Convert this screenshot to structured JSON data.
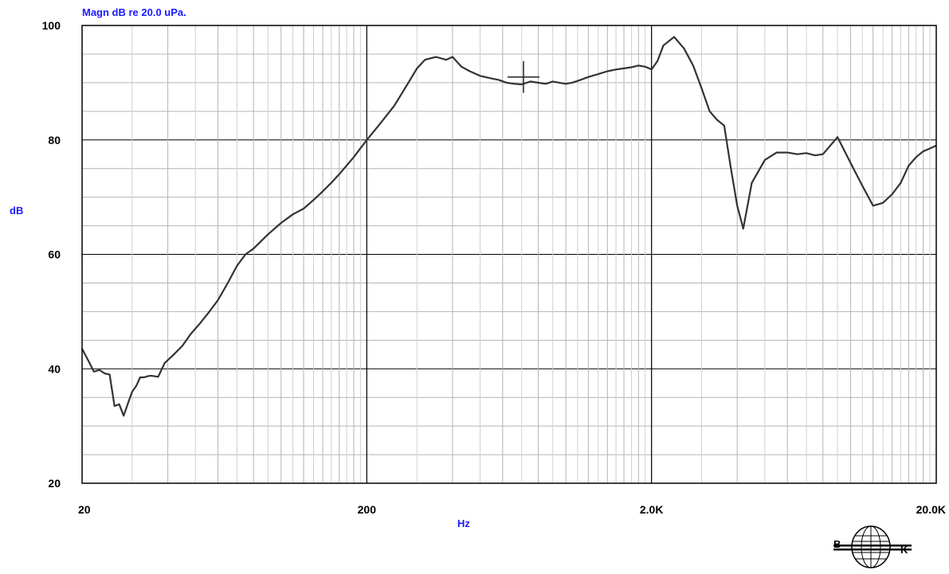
{
  "chart_data": {
    "type": "line",
    "title": "Magn dB re 20.0 uPa.",
    "xlabel": "Hz",
    "ylabel": "dB",
    "xscale": "log",
    "xlim": [
      20,
      20000
    ],
    "ylim": [
      20,
      100
    ],
    "grid": true,
    "yticks": [
      {
        "value": 20,
        "label": "20"
      },
      {
        "value": 40,
        "label": "40"
      },
      {
        "value": 60,
        "label": "60"
      },
      {
        "value": 80,
        "label": "80"
      },
      {
        "value": 100,
        "label": "100"
      }
    ],
    "xticks": [
      {
        "value": 20,
        "label": "20"
      },
      {
        "value": 200,
        "label": "200"
      },
      {
        "value": 2000,
        "label": "2.0K"
      },
      {
        "value": 20000,
        "label": "20.0K"
      }
    ],
    "cursor": {
      "x": 710,
      "y": 91
    },
    "series": [
      {
        "name": "",
        "color": "#000000",
        "x": [
          20,
          21,
          22,
          23,
          24,
          25,
          26,
          27,
          28,
          29,
          30,
          31,
          32,
          33,
          34,
          35,
          37,
          39,
          42,
          45,
          48,
          52,
          56,
          60,
          65,
          70,
          75,
          80,
          90,
          100,
          110,
          120,
          130,
          140,
          150,
          160,
          180,
          200,
          220,
          250,
          280,
          300,
          320,
          350,
          380,
          400,
          430,
          460,
          500,
          540,
          580,
          620,
          660,
          700,
          750,
          800,
          850,
          900,
          950,
          1000,
          1050,
          1100,
          1200,
          1300,
          1400,
          1500,
          1600,
          1700,
          1800,
          1900,
          2000,
          2100,
          2200,
          2400,
          2600,
          2800,
          3000,
          3200,
          3400,
          3600,
          3800,
          4000,
          4200,
          4500,
          5000,
          5500,
          6000,
          6500,
          7000,
          7500,
          8000,
          9000,
          10000,
          11000,
          12000,
          13000,
          14000,
          15000,
          16000,
          17000,
          18000,
          19000,
          20000
        ],
        "y": [
          43.5,
          41.5,
          39.5,
          39.8,
          39.2,
          39.0,
          33.5,
          33.8,
          31.8,
          34.0,
          36.0,
          37.0,
          38.5,
          38.5,
          38.7,
          38.8,
          38.6,
          41.0,
          42.5,
          44.0,
          46.0,
          48.0,
          50.0,
          52.0,
          55.0,
          58.0,
          60.0,
          61.0,
          63.5,
          65.5,
          67.0,
          68.0,
          69.5,
          71.0,
          72.5,
          74.0,
          77.0,
          80.0,
          82.5,
          86.0,
          90.0,
          92.5,
          94.0,
          94.5,
          94.0,
          94.5,
          92.8,
          92.0,
          91.2,
          90.8,
          90.5,
          90.0,
          89.8,
          89.7,
          90.2,
          90.0,
          89.8,
          90.2,
          90.0,
          89.8,
          90.0,
          90.3,
          91.0,
          91.5,
          92.0,
          92.3,
          92.5,
          92.7,
          93.0,
          92.8,
          92.3,
          93.8,
          96.5,
          98.0,
          96.0,
          93.0,
          89.0,
          85.0,
          83.5,
          82.5,
          75.0,
          68.5,
          64.5,
          72.5,
          76.5,
          77.8,
          77.8,
          77.5,
          77.7,
          77.3,
          77.5,
          80.5,
          76.0,
          72.0,
          68.5,
          69.0,
          70.5,
          72.5,
          75.5,
          77.0,
          78.0,
          78.5,
          79.0
        ]
      }
    ]
  },
  "logo": {
    "left": "B",
    "right": "K"
  }
}
